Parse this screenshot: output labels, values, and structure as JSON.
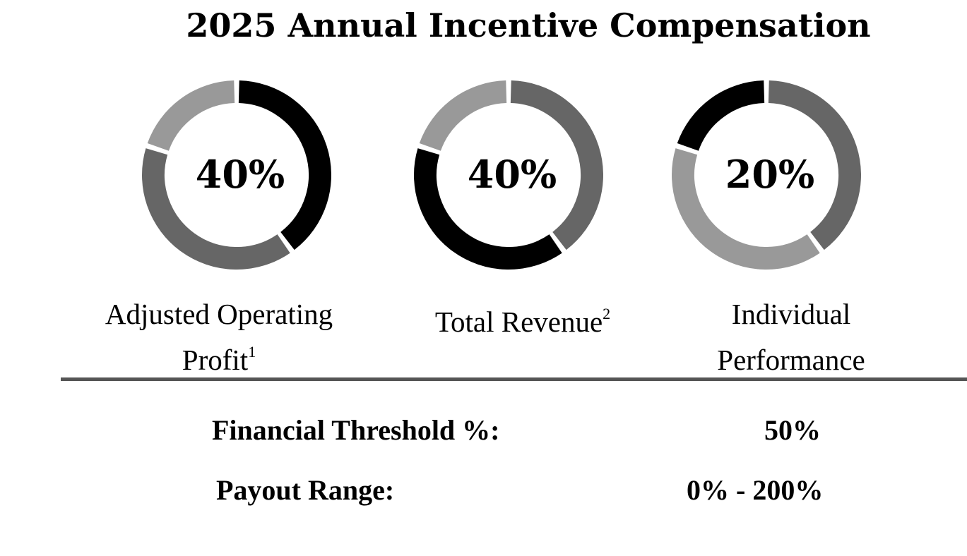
{
  "title": "2025 Annual Incentive Compensation",
  "colors": {
    "dark": "#000000",
    "mid": "#666666",
    "light": "#999999"
  },
  "chart_data": [
    {
      "type": "pie",
      "center_label": "40%",
      "label": "Adjusted Operating Profit",
      "footnote": "1",
      "slices": [
        {
          "value": 40,
          "color": "#000000"
        },
        {
          "value": 40,
          "color": "#666666"
        },
        {
          "value": 20,
          "color": "#999999"
        }
      ]
    },
    {
      "type": "pie",
      "center_label": "40%",
      "label": "Total Revenue",
      "footnote": "2",
      "slices": [
        {
          "value": 40,
          "color": "#666666"
        },
        {
          "value": 40,
          "color": "#000000"
        },
        {
          "value": 20,
          "color": "#999999"
        }
      ]
    },
    {
      "type": "pie",
      "center_label": "20%",
      "label": "Individual Performance",
      "footnote": "",
      "slices": [
        {
          "value": 40,
          "color": "#666666"
        },
        {
          "value": 40,
          "color": "#999999"
        },
        {
          "value": 20,
          "color": "#000000"
        }
      ]
    }
  ],
  "summary": [
    {
      "label": "Financial Threshold %:",
      "value": "50%"
    },
    {
      "label": "Payout Range:",
      "value": "0% - 200%"
    }
  ]
}
